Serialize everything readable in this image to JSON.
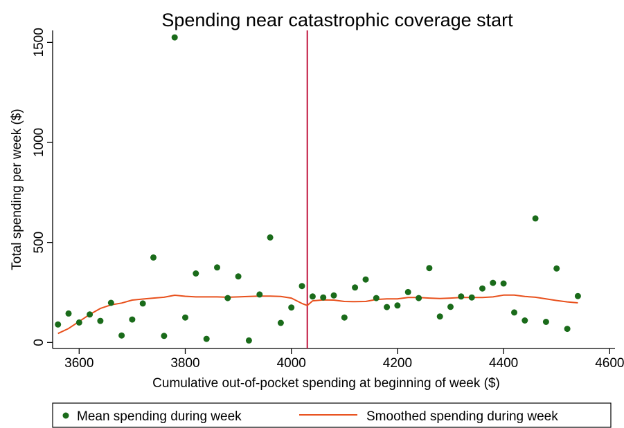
{
  "chart_data": {
    "type": "scatter",
    "title": "Spending near catastrophic coverage start",
    "xlabel": "Cumulative out-of-pocket spending at beginning of week ($)",
    "ylabel": "Total spending per week ($)",
    "xlim": [
      3550,
      4610
    ],
    "ylim": [
      -30,
      1560
    ],
    "xticks": [
      3600,
      3800,
      4000,
      4200,
      4400,
      4600
    ],
    "yticks": [
      0,
      500,
      1000,
      1500
    ],
    "grid": false,
    "legend_position": "bottom",
    "vertical_line": {
      "x": 4030,
      "color": "#c0143c"
    },
    "series": [
      {
        "name": "Mean spending during week",
        "kind": "scatter",
        "color": "#1a6b1a",
        "points": [
          [
            3560,
            90
          ],
          [
            3580,
            145
          ],
          [
            3600,
            100
          ],
          [
            3620,
            140
          ],
          [
            3640,
            108
          ],
          [
            3660,
            198
          ],
          [
            3680,
            35
          ],
          [
            3700,
            115
          ],
          [
            3720,
            195
          ],
          [
            3740,
            425
          ],
          [
            3760,
            33
          ],
          [
            3780,
            1525
          ],
          [
            3800,
            125
          ],
          [
            3820,
            345
          ],
          [
            3840,
            18
          ],
          [
            3860,
            375
          ],
          [
            3880,
            222
          ],
          [
            3900,
            330
          ],
          [
            3920,
            10
          ],
          [
            3940,
            240
          ],
          [
            3960,
            525
          ],
          [
            3980,
            98
          ],
          [
            4000,
            175
          ],
          [
            4020,
            282
          ],
          [
            4040,
            230
          ],
          [
            4060,
            225
          ],
          [
            4080,
            235
          ],
          [
            4100,
            125
          ],
          [
            4120,
            275
          ],
          [
            4140,
            315
          ],
          [
            4160,
            222
          ],
          [
            4180,
            177
          ],
          [
            4200,
            185
          ],
          [
            4220,
            252
          ],
          [
            4240,
            222
          ],
          [
            4260,
            372
          ],
          [
            4280,
            130
          ],
          [
            4300,
            178
          ],
          [
            4320,
            230
          ],
          [
            4340,
            225
          ],
          [
            4360,
            270
          ],
          [
            4380,
            298
          ],
          [
            4400,
            295
          ],
          [
            4420,
            150
          ],
          [
            4440,
            110
          ],
          [
            4460,
            620
          ],
          [
            4480,
            103
          ],
          [
            4500,
            370
          ],
          [
            4520,
            68
          ],
          [
            4540,
            232
          ]
        ]
      },
      {
        "name": "Smoothed spending during week",
        "kind": "line",
        "color": "#e8501c",
        "points": [
          [
            3560,
            45
          ],
          [
            3580,
            70
          ],
          [
            3600,
            105
          ],
          [
            3620,
            140
          ],
          [
            3640,
            170
          ],
          [
            3660,
            188
          ],
          [
            3680,
            197
          ],
          [
            3700,
            212
          ],
          [
            3720,
            217
          ],
          [
            3740,
            222
          ],
          [
            3760,
            226
          ],
          [
            3780,
            236
          ],
          [
            3800,
            231
          ],
          [
            3820,
            228
          ],
          [
            3840,
            228
          ],
          [
            3860,
            228
          ],
          [
            3880,
            226
          ],
          [
            3900,
            228
          ],
          [
            3920,
            230
          ],
          [
            3940,
            232
          ],
          [
            3960,
            232
          ],
          [
            3980,
            230
          ],
          [
            4000,
            222
          ],
          [
            4020,
            195
          ],
          [
            4030,
            185
          ],
          [
            4040,
            208
          ],
          [
            4060,
            213
          ],
          [
            4080,
            212
          ],
          [
            4100,
            205
          ],
          [
            4120,
            204
          ],
          [
            4140,
            205
          ],
          [
            4160,
            215
          ],
          [
            4180,
            218
          ],
          [
            4200,
            218
          ],
          [
            4220,
            225
          ],
          [
            4240,
            225
          ],
          [
            4260,
            222
          ],
          [
            4280,
            220
          ],
          [
            4300,
            222
          ],
          [
            4320,
            225
          ],
          [
            4340,
            225
          ],
          [
            4360,
            225
          ],
          [
            4380,
            228
          ],
          [
            4400,
            237
          ],
          [
            4420,
            237
          ],
          [
            4440,
            230
          ],
          [
            4460,
            226
          ],
          [
            4480,
            218
          ],
          [
            4500,
            210
          ],
          [
            4520,
            203
          ],
          [
            4540,
            198
          ]
        ]
      }
    ]
  }
}
